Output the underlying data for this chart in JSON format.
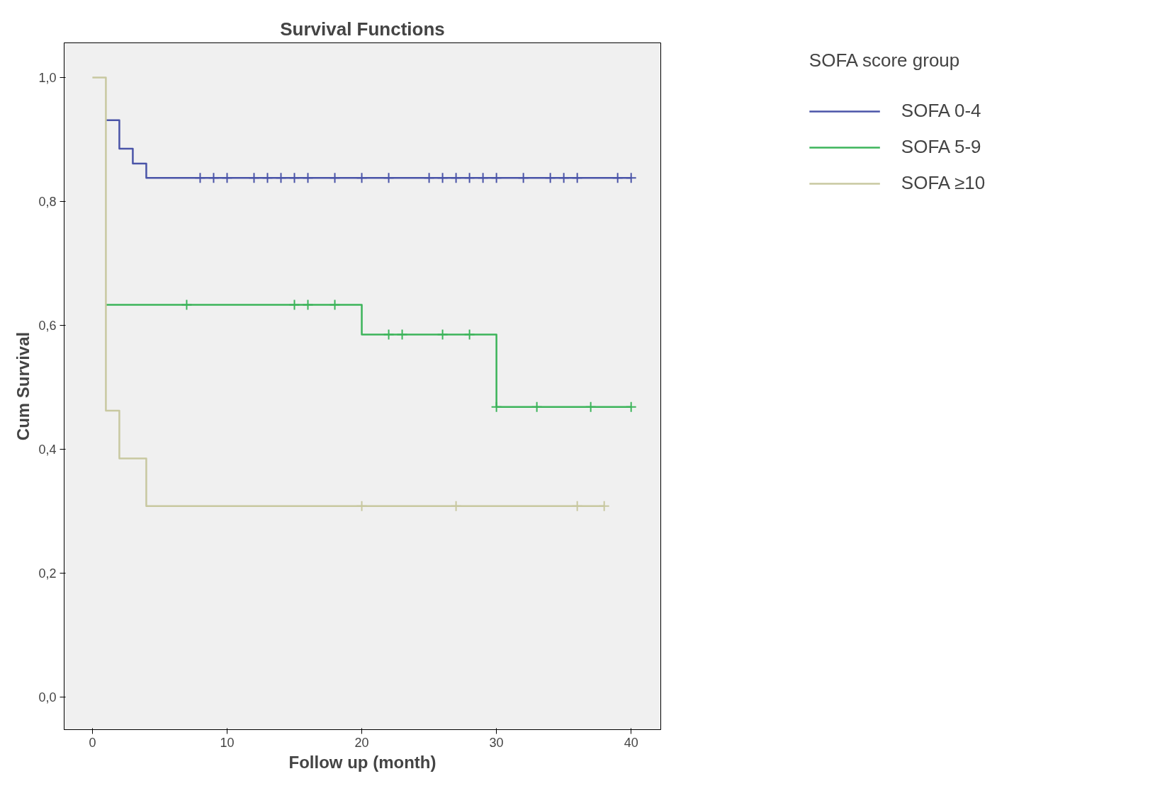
{
  "chart_data": {
    "type": "step",
    "title": "Survival Functions",
    "xlabel": "Follow up (month)",
    "ylabel": "Cum Survival",
    "legend_title": "SOFA score group",
    "legend": "top right",
    "xlim": [
      -2.1,
      42.2
    ],
    "ylim": [
      -0.053,
      1.056
    ],
    "xticks": [
      0,
      10,
      20,
      30,
      40
    ],
    "yticks": [
      {
        "value": 0,
        "label": "0,0"
      },
      {
        "value": 0.2,
        "label": "0,2"
      },
      {
        "value": 0.4,
        "label": "0,4"
      },
      {
        "value": 0.6,
        "label": "0,6"
      },
      {
        "value": 0.8,
        "label": "0,8"
      },
      {
        "value": 1.0,
        "label": "1,0"
      }
    ],
    "grid": false,
    "line_style": "solid",
    "series": [
      {
        "name": "SOFA 0-4",
        "color": "#4a54a8",
        "x": [
          1,
          2,
          3,
          4,
          40
        ],
        "values": [
          0.931,
          0.885,
          0.861,
          0.838,
          0.838
        ]
      },
      {
        "name": "SOFA 5-9",
        "color": "#3cb45a",
        "x": [
          1,
          20,
          30,
          40
        ],
        "values": [
          0.633,
          0.585,
          0.468,
          0.468
        ]
      },
      {
        "name": "SOFA ≥10",
        "color": "#c8c8a0",
        "x": [
          0,
          1,
          2,
          4,
          38
        ],
        "values": [
          1.0,
          0.462,
          0.385,
          0.308,
          0.308
        ]
      },
      {
        "type": "scatter",
        "marker": "cross",
        "color": "#4a54a8",
        "x": [
          8,
          9,
          10,
          12,
          13,
          14,
          15,
          16,
          18,
          20,
          22,
          25,
          26,
          27,
          28,
          29,
          30,
          32,
          34,
          35,
          36,
          39,
          40
        ],
        "values": [
          0.838,
          0.838,
          0.838,
          0.838,
          0.838,
          0.838,
          0.838,
          0.838,
          0.838,
          0.838,
          0.838,
          0.838,
          0.838,
          0.838,
          0.838,
          0.838,
          0.838,
          0.838,
          0.838,
          0.838,
          0.838,
          0.838,
          0.838
        ]
      },
      {
        "type": "scatter",
        "marker": "cross",
        "color": "#3cb45a",
        "x": [
          7,
          15,
          16,
          18,
          22,
          23,
          26,
          28,
          30,
          33,
          37,
          40
        ],
        "values": [
          0.633,
          0.633,
          0.633,
          0.633,
          0.585,
          0.585,
          0.585,
          0.585,
          0.468,
          0.468,
          0.468,
          0.468
        ]
      },
      {
        "type": "scatter",
        "marker": "cross",
        "color": "#c8c8a0",
        "x": [
          20,
          27,
          36,
          38
        ],
        "values": [
          0.308,
          0.308,
          0.308,
          0.308
        ]
      }
    ]
  }
}
